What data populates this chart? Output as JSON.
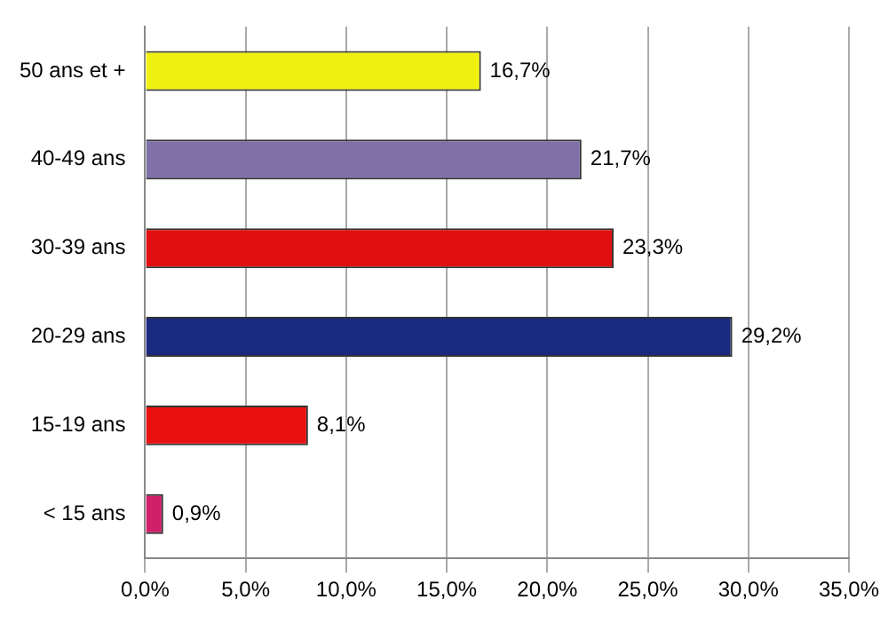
{
  "chart_data": {
    "type": "bar",
    "orientation": "horizontal",
    "categories": [
      "50 ans et +",
      "40-49 ans",
      "30-39 ans",
      "20-29 ans",
      "15-19 ans",
      "< 15 ans"
    ],
    "values": [
      16.7,
      21.7,
      23.3,
      29.2,
      8.1,
      0.9
    ],
    "colors": [
      "#f0f010",
      "#8070a8",
      "#e01010",
      "#1a2a80",
      "#e81010",
      "#d0206a"
    ],
    "value_labels": [
      "16,7%",
      "21,7%",
      "23,3%",
      "29,2%",
      "8,1%",
      "0,9%"
    ],
    "xlim": [
      0,
      35
    ],
    "xticks": [
      {
        "value": 0,
        "label": "0,0%"
      },
      {
        "value": 5,
        "label": "5,0%"
      },
      {
        "value": 10,
        "label": "10,0%"
      },
      {
        "value": 15,
        "label": "15,0%"
      },
      {
        "value": 20,
        "label": "20,0%"
      },
      {
        "value": 25,
        "label": "25,0%"
      },
      {
        "value": 30,
        "label": "30,0%"
      },
      {
        "value": 35,
        "label": "35,0%"
      }
    ],
    "grid": "x",
    "legend": false
  }
}
